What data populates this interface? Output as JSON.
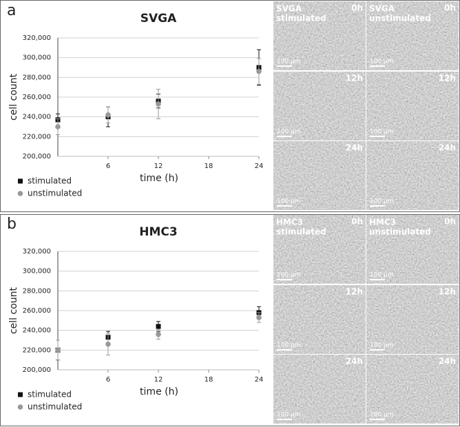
{
  "chart_data": [
    {
      "type": "scatter",
      "panel_label": "a",
      "title": "SVGA",
      "x_label": "time (h)",
      "y_label": "cell count",
      "x": [
        0,
        6,
        12,
        24
      ],
      "xlim": [
        0,
        24
      ],
      "xticks": [
        6,
        12,
        18,
        24
      ],
      "ylim": [
        200000,
        320000
      ],
      "yticks": [
        {
          "value": 200000,
          "label": "200,000"
        },
        {
          "value": 220000,
          "label": "220,000"
        },
        {
          "value": 240000,
          "label": "240,000"
        },
        {
          "value": 260000,
          "label": "260,000"
        },
        {
          "value": 280000,
          "label": "280,000"
        },
        {
          "value": 300000,
          "label": "300,000"
        },
        {
          "value": 320000,
          "label": "320,000"
        }
      ],
      "grid": true,
      "legend": "bottom-left",
      "series": [
        {
          "name": "stimulated",
          "color": "#111111",
          "marker": "square",
          "values": [
            237000,
            240000,
            256000,
            290000
          ],
          "errors": [
            6000,
            10000,
            7000,
            18000
          ]
        },
        {
          "name": "unstimulated",
          "color": "#999999",
          "marker": "circle",
          "values": [
            230000,
            242000,
            253000,
            286000
          ],
          "errors": [
            8000,
            8000,
            15000,
            13000
          ]
        }
      ],
      "micrographs": {
        "columns": [
          [
            "SVGA",
            "stimulated"
          ],
          [
            "SVGA",
            "unstimulated"
          ]
        ],
        "times": [
          "0h",
          "12h",
          "24h"
        ],
        "scale_bar": "100 µm"
      }
    },
    {
      "type": "scatter",
      "panel_label": "b",
      "title": "HMC3",
      "x_label": "time (h)",
      "y_label": "cell count",
      "x": [
        0,
        6,
        12,
        24
      ],
      "xlim": [
        0,
        24
      ],
      "xticks": [
        6,
        12,
        18,
        24
      ],
      "ylim": [
        200000,
        320000
      ],
      "yticks": [
        {
          "value": 200000,
          "label": "200,000"
        },
        {
          "value": 220000,
          "label": "220,000"
        },
        {
          "value": 240000,
          "label": "240,000"
        },
        {
          "value": 260000,
          "label": "260,000"
        },
        {
          "value": 280000,
          "label": "280,000"
        },
        {
          "value": 300000,
          "label": "300,000"
        },
        {
          "value": 320000,
          "label": "320,000"
        }
      ],
      "grid": true,
      "legend": "bottom-left",
      "series": [
        {
          "name": "stimulated",
          "color": "#111111",
          "marker": "square",
          "values": [
            220000,
            233000,
            244000,
            258000
          ],
          "errors": [
            10000,
            6000,
            5000,
            6000
          ]
        },
        {
          "name": "unstimulated",
          "color": "#999999",
          "marker": "circle",
          "values": [
            220000,
            226000,
            236000,
            253000
          ],
          "errors": [
            10000,
            11000,
            5000,
            5000
          ]
        }
      ],
      "micrographs": {
        "columns": [
          [
            "HMC3",
            "stimulated"
          ],
          [
            "HMC3",
            "unstimulated"
          ]
        ],
        "times": [
          "0h",
          "12h",
          "24h"
        ],
        "scale_bar": "100 µm"
      }
    }
  ]
}
